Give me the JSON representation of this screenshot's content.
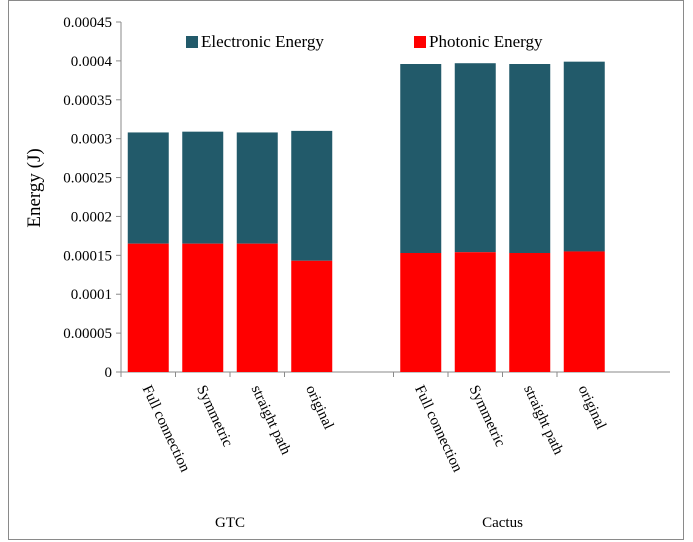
{
  "chart_data": {
    "type": "bar",
    "stacked": true,
    "ylabel": "Energy (J)",
    "xlabel": "",
    "ylim": [
      0,
      0.00045
    ],
    "y_ticks": [
      "0",
      "0.00005",
      "0.0001",
      "0.00015",
      "0.0002",
      "0.00025",
      "0.0003",
      "0.00035",
      "0.0004",
      "0.00045"
    ],
    "grid": false,
    "legend_position": "top",
    "groups": [
      {
        "name": "GTC",
        "categories": [
          "Full connection",
          "Symmetric",
          "straight path",
          "original"
        ]
      },
      {
        "name": "Cactus",
        "categories": [
          "Full connection",
          "Symmetric",
          "straight path",
          "original"
        ]
      }
    ],
    "series": [
      {
        "name": "Photonic Energy",
        "color": "#ff0000",
        "values": [
          0.000165,
          0.000165,
          0.000165,
          0.000143,
          0.000153,
          0.000154,
          0.000153,
          0.000155
        ]
      },
      {
        "name": "Electronic Energy",
        "color": "#225a6a",
        "values": [
          0.000143,
          0.000144,
          0.000143,
          0.000167,
          0.000243,
          0.000243,
          0.000243,
          0.000244
        ]
      }
    ],
    "legend_order": [
      "Electronic Energy",
      "Photonic Energy"
    ]
  }
}
